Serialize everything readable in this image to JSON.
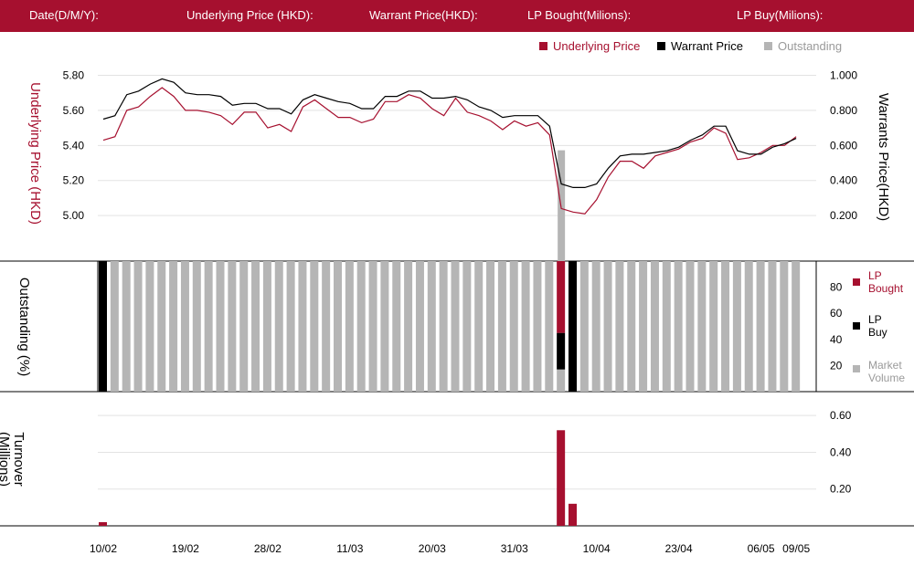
{
  "header": {
    "date_label": "Date(D/M/Y):",
    "underlying_label": "Underlying Price (HKD):",
    "warrant_label": "Warrant  Price(HKD):",
    "lp_bought_label": "LP Bought(Milions):",
    "lp_buy_label": "LP Buy(Milions):"
  },
  "colors": {
    "brand": "#a6102f",
    "black": "#000000",
    "grey": "#b5b5b5"
  },
  "chart_data": [
    {
      "type": "line",
      "legend": [
        {
          "label": "Underlying Price",
          "color": "#a6102f"
        },
        {
          "label": "Warrant  Price",
          "color": "#000000"
        },
        {
          "label": "Outstanding",
          "color": "#b5b5b5"
        }
      ],
      "left_axis_label": "Underlying Price (HKD)",
      "right_axis_label": "Warrants  Price(HKD)",
      "left_ticks": [
        "5.80",
        "5.60",
        "5.40",
        "5.20",
        "5.00"
      ],
      "right_ticks": [
        "1.000",
        "0.800",
        "0.600",
        "0.400",
        "0.200"
      ],
      "left_ylim": [
        4.74,
        5.98
      ],
      "right_ylim": [
        -0.06,
        1.18
      ],
      "underlying": [
        5.43,
        5.45,
        5.6,
        5.62,
        5.68,
        5.73,
        5.68,
        5.6,
        5.6,
        5.59,
        5.57,
        5.52,
        5.59,
        5.59,
        5.5,
        5.52,
        5.48,
        5.62,
        5.66,
        5.61,
        5.56,
        5.56,
        5.53,
        5.55,
        5.65,
        5.65,
        5.69,
        5.67,
        5.61,
        5.57,
        5.67,
        5.59,
        5.57,
        5.54,
        5.49,
        5.54,
        5.51,
        5.53,
        5.46,
        5.04,
        5.02,
        5.01,
        5.09,
        5.22,
        5.31,
        5.31,
        5.27,
        5.34,
        5.36,
        5.38,
        5.42,
        5.44,
        5.5,
        5.47,
        5.32,
        5.33,
        5.36,
        5.4,
        5.4,
        5.45
      ],
      "warrant": [
        0.75,
        0.77,
        0.89,
        0.91,
        0.95,
        0.98,
        0.96,
        0.9,
        0.89,
        0.89,
        0.88,
        0.83,
        0.84,
        0.84,
        0.81,
        0.81,
        0.78,
        0.86,
        0.89,
        0.87,
        0.85,
        0.84,
        0.81,
        0.81,
        0.88,
        0.88,
        0.91,
        0.91,
        0.87,
        0.87,
        0.88,
        0.86,
        0.82,
        0.8,
        0.76,
        0.77,
        0.77,
        0.77,
        0.71,
        0.38,
        0.36,
        0.36,
        0.38,
        0.47,
        0.54,
        0.55,
        0.55,
        0.56,
        0.57,
        0.59,
        0.63,
        0.66,
        0.71,
        0.71,
        0.57,
        0.55,
        0.55,
        0.59,
        0.61,
        0.64
      ],
      "outstanding_spike": {
        "index": 39,
        "value": 51
      }
    },
    {
      "type": "bar",
      "axis_label": "Outstanding (%)",
      "ticks": [
        "80",
        "60",
        "40",
        "20"
      ],
      "ylim": [
        0,
        100
      ],
      "legend": [
        {
          "label": "LP Bought",
          "color": "#a6102f"
        },
        {
          "label": "LP Buy",
          "color": "#000000"
        },
        {
          "label": "Market Volume",
          "color": "#b5b5b5"
        }
      ],
      "count": 60,
      "segments": [
        {
          "index": 0,
          "lp_buy": 100,
          "lp_bought": 0,
          "market_volume": 0
        },
        {
          "index": 39,
          "lp_buy": 28,
          "lp_bought": 55,
          "market_volume": 17
        },
        {
          "index": 40,
          "lp_buy": 100,
          "lp_bought": 0,
          "market_volume": 0
        }
      ],
      "default_market_volume": 100
    },
    {
      "type": "bar",
      "axis_label": "Turnover (Millions)",
      "ticks": [
        "0.60",
        "0.40",
        "0.20"
      ],
      "ylim": [
        0,
        0.715
      ],
      "values": [
        0.02,
        0,
        0,
        0,
        0,
        0,
        0,
        0,
        0,
        0,
        0,
        0,
        0,
        0,
        0,
        0,
        0,
        0,
        0,
        0,
        0,
        0,
        0,
        0,
        0,
        0,
        0,
        0,
        0,
        0,
        0,
        0,
        0,
        0,
        0,
        0,
        0,
        0,
        0,
        0.52,
        0.12,
        0,
        0,
        0,
        0,
        0,
        0,
        0,
        0,
        0,
        0,
        0,
        0,
        0,
        0,
        0,
        0,
        0,
        0,
        0
      ]
    }
  ],
  "x_labels": [
    {
      "label": "10/02",
      "index": 0
    },
    {
      "label": "19/02",
      "index": 7
    },
    {
      "label": "28/02",
      "index": 14
    },
    {
      "label": "11/03",
      "index": 21
    },
    {
      "label": "20/03",
      "index": 28
    },
    {
      "label": "31/03",
      "index": 35
    },
    {
      "label": "10/04",
      "index": 42
    },
    {
      "label": "23/04",
      "index": 49
    },
    {
      "label": "06/05",
      "index": 56
    },
    {
      "label": "09/05",
      "index": 59
    }
  ]
}
